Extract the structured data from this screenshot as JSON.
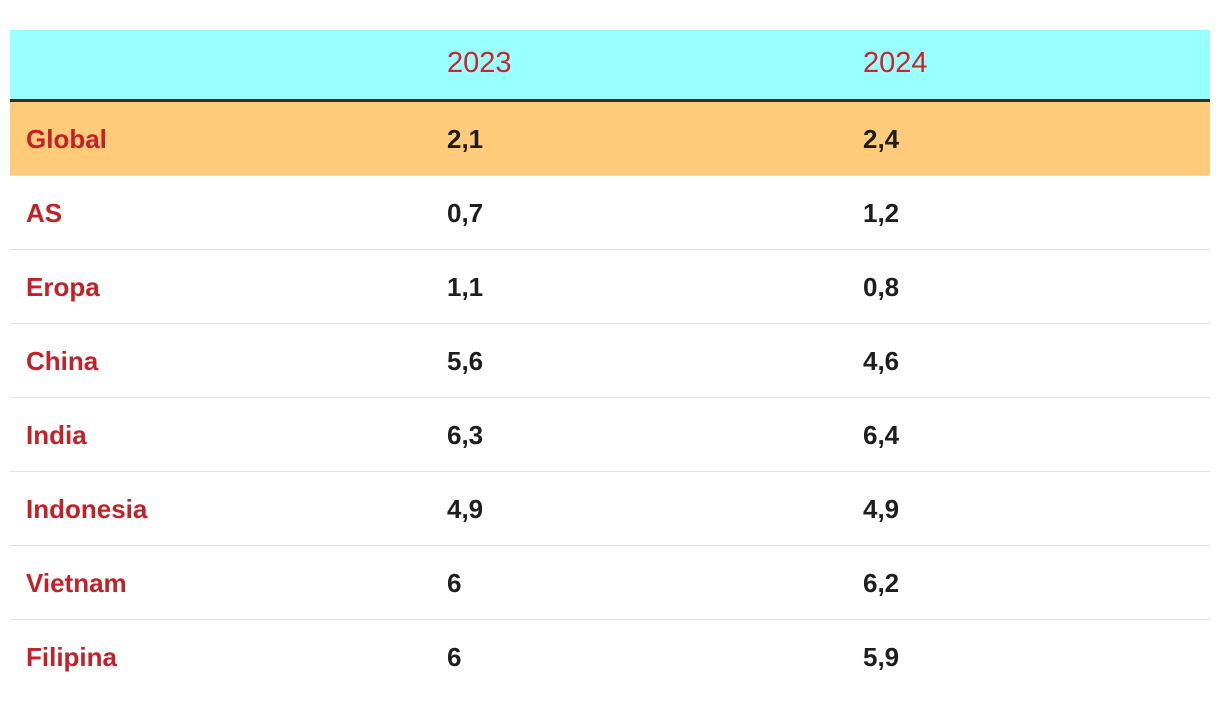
{
  "chart_data": {
    "type": "table",
    "columns": [
      "",
      "2023",
      "2024"
    ],
    "rows": [
      {
        "label": "Global",
        "values": [
          "2,1",
          "2,4"
        ],
        "highlight": true
      },
      {
        "label": "AS",
        "values": [
          "0,7",
          "1,2"
        ]
      },
      {
        "label": "Eropa",
        "values": [
          "1,1",
          "0,8"
        ]
      },
      {
        "label": "China",
        "values": [
          "5,6",
          "4,6"
        ]
      },
      {
        "label": "India",
        "values": [
          "6,3",
          "6,4"
        ]
      },
      {
        "label": "Indonesia",
        "values": [
          "4,9",
          "4,9"
        ]
      },
      {
        "label": "Vietnam",
        "values": [
          "6",
          "6,2"
        ]
      },
      {
        "label": "Filipina",
        "values": [
          "6",
          "5,9"
        ]
      }
    ]
  },
  "colors": {
    "header_bg": "#99ffff",
    "highlight_bg": "#fecb7b",
    "label_text": "#c32027",
    "value_text": "#1e1e1e"
  }
}
